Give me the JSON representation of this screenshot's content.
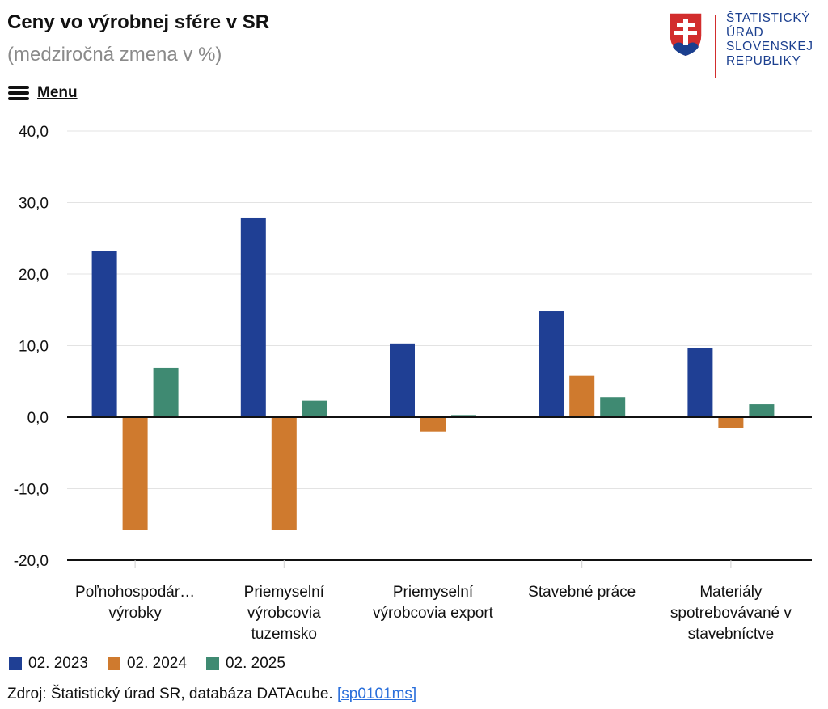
{
  "title": "Ceny vo výrobnej sfére v SR",
  "subtitle": "(medziročná zmena v %)",
  "menu": {
    "label": "Menu"
  },
  "logo": {
    "line1": "ŠTATISTICKÝ",
    "line2": "ÚRAD",
    "line3": "SLOVENSKEJ",
    "line4": "REPUBLIKY",
    "colors": {
      "shield": "#d22d2d",
      "mount": "#1b3f8f"
    }
  },
  "source": {
    "text": "Zdroj: Štatistický úrad SR, databáza DATAcube.",
    "link": "[sp0101ms]"
  },
  "chart_data": {
    "type": "bar",
    "title": "Ceny vo výrobnej sfére v SR",
    "subtitle": "(medziročná zmena v %)",
    "categories": [
      [
        "Poľnohospodár…",
        "výrobky"
      ],
      [
        "Priemyselní",
        "výrobcovia",
        "tuzemsko"
      ],
      [
        "Priemyselní",
        "výrobcovia export"
      ],
      [
        "Stavebné práce"
      ],
      [
        "Materiály",
        "spotrebovávané v",
        "stavebníctve"
      ]
    ],
    "series": [
      {
        "name": "02. 2023",
        "color": "#1f3f94",
        "values": [
          23.2,
          27.8,
          10.3,
          14.8,
          9.7
        ]
      },
      {
        "name": "02. 2024",
        "color": "#cf7a2e",
        "values": [
          -15.8,
          -15.8,
          -2.0,
          5.8,
          -1.5
        ]
      },
      {
        "name": "02. 2025",
        "color": "#3f8a72",
        "values": [
          6.9,
          2.3,
          0.3,
          2.8,
          1.8
        ]
      }
    ],
    "ylim": [
      -20,
      40
    ],
    "yticks": [
      40,
      30,
      20,
      10,
      0,
      -10,
      -20
    ],
    "ytick_labels": [
      "40,0",
      "30,0",
      "20,0",
      "10,0",
      "0,0",
      "-10,0",
      "-20,0"
    ],
    "grid": true,
    "legend": "bottom-left",
    "xlabel": "",
    "ylabel": ""
  }
}
